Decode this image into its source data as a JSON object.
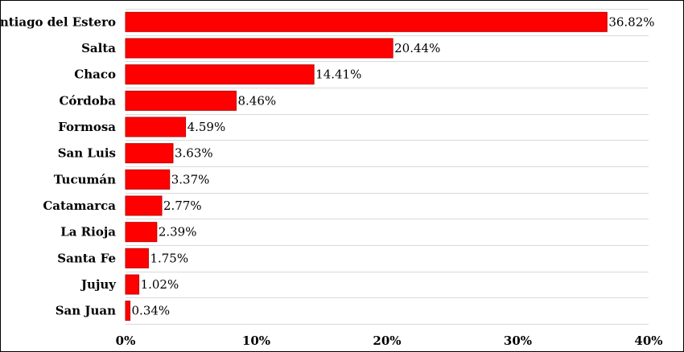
{
  "chart_data": {
    "type": "bar",
    "orientation": "horizontal",
    "categories": [
      "Santiago del Estero",
      "Salta",
      "Chaco",
      "Córdoba",
      "Formosa",
      "San Luis",
      "Tucumán",
      "Catamarca",
      "La Rioja",
      "Santa Fe",
      "Jujuy",
      "San Juan"
    ],
    "values": [
      36.82,
      20.44,
      14.41,
      8.46,
      4.59,
      3.63,
      3.37,
      2.77,
      2.39,
      1.75,
      1.02,
      0.34
    ],
    "value_labels": [
      "36.82%",
      "20.44%",
      "14.41%",
      "8.46%",
      "4.59%",
      "3.63%",
      "3.37%",
      "2.77%",
      "2.39%",
      "1.75%",
      "1.02%",
      "0.34%"
    ],
    "title": "",
    "xlabel": "",
    "ylabel": "",
    "xlim": [
      0,
      40
    ],
    "xticks": [
      0,
      10,
      20,
      30,
      40
    ],
    "xtick_labels": [
      "0%",
      "10%",
      "20%",
      "30%",
      "40%"
    ],
    "grid": "horizontal lines between categories",
    "legend": "none",
    "bar_color": "#ff0000",
    "bar_edge_color": "#c00000"
  }
}
